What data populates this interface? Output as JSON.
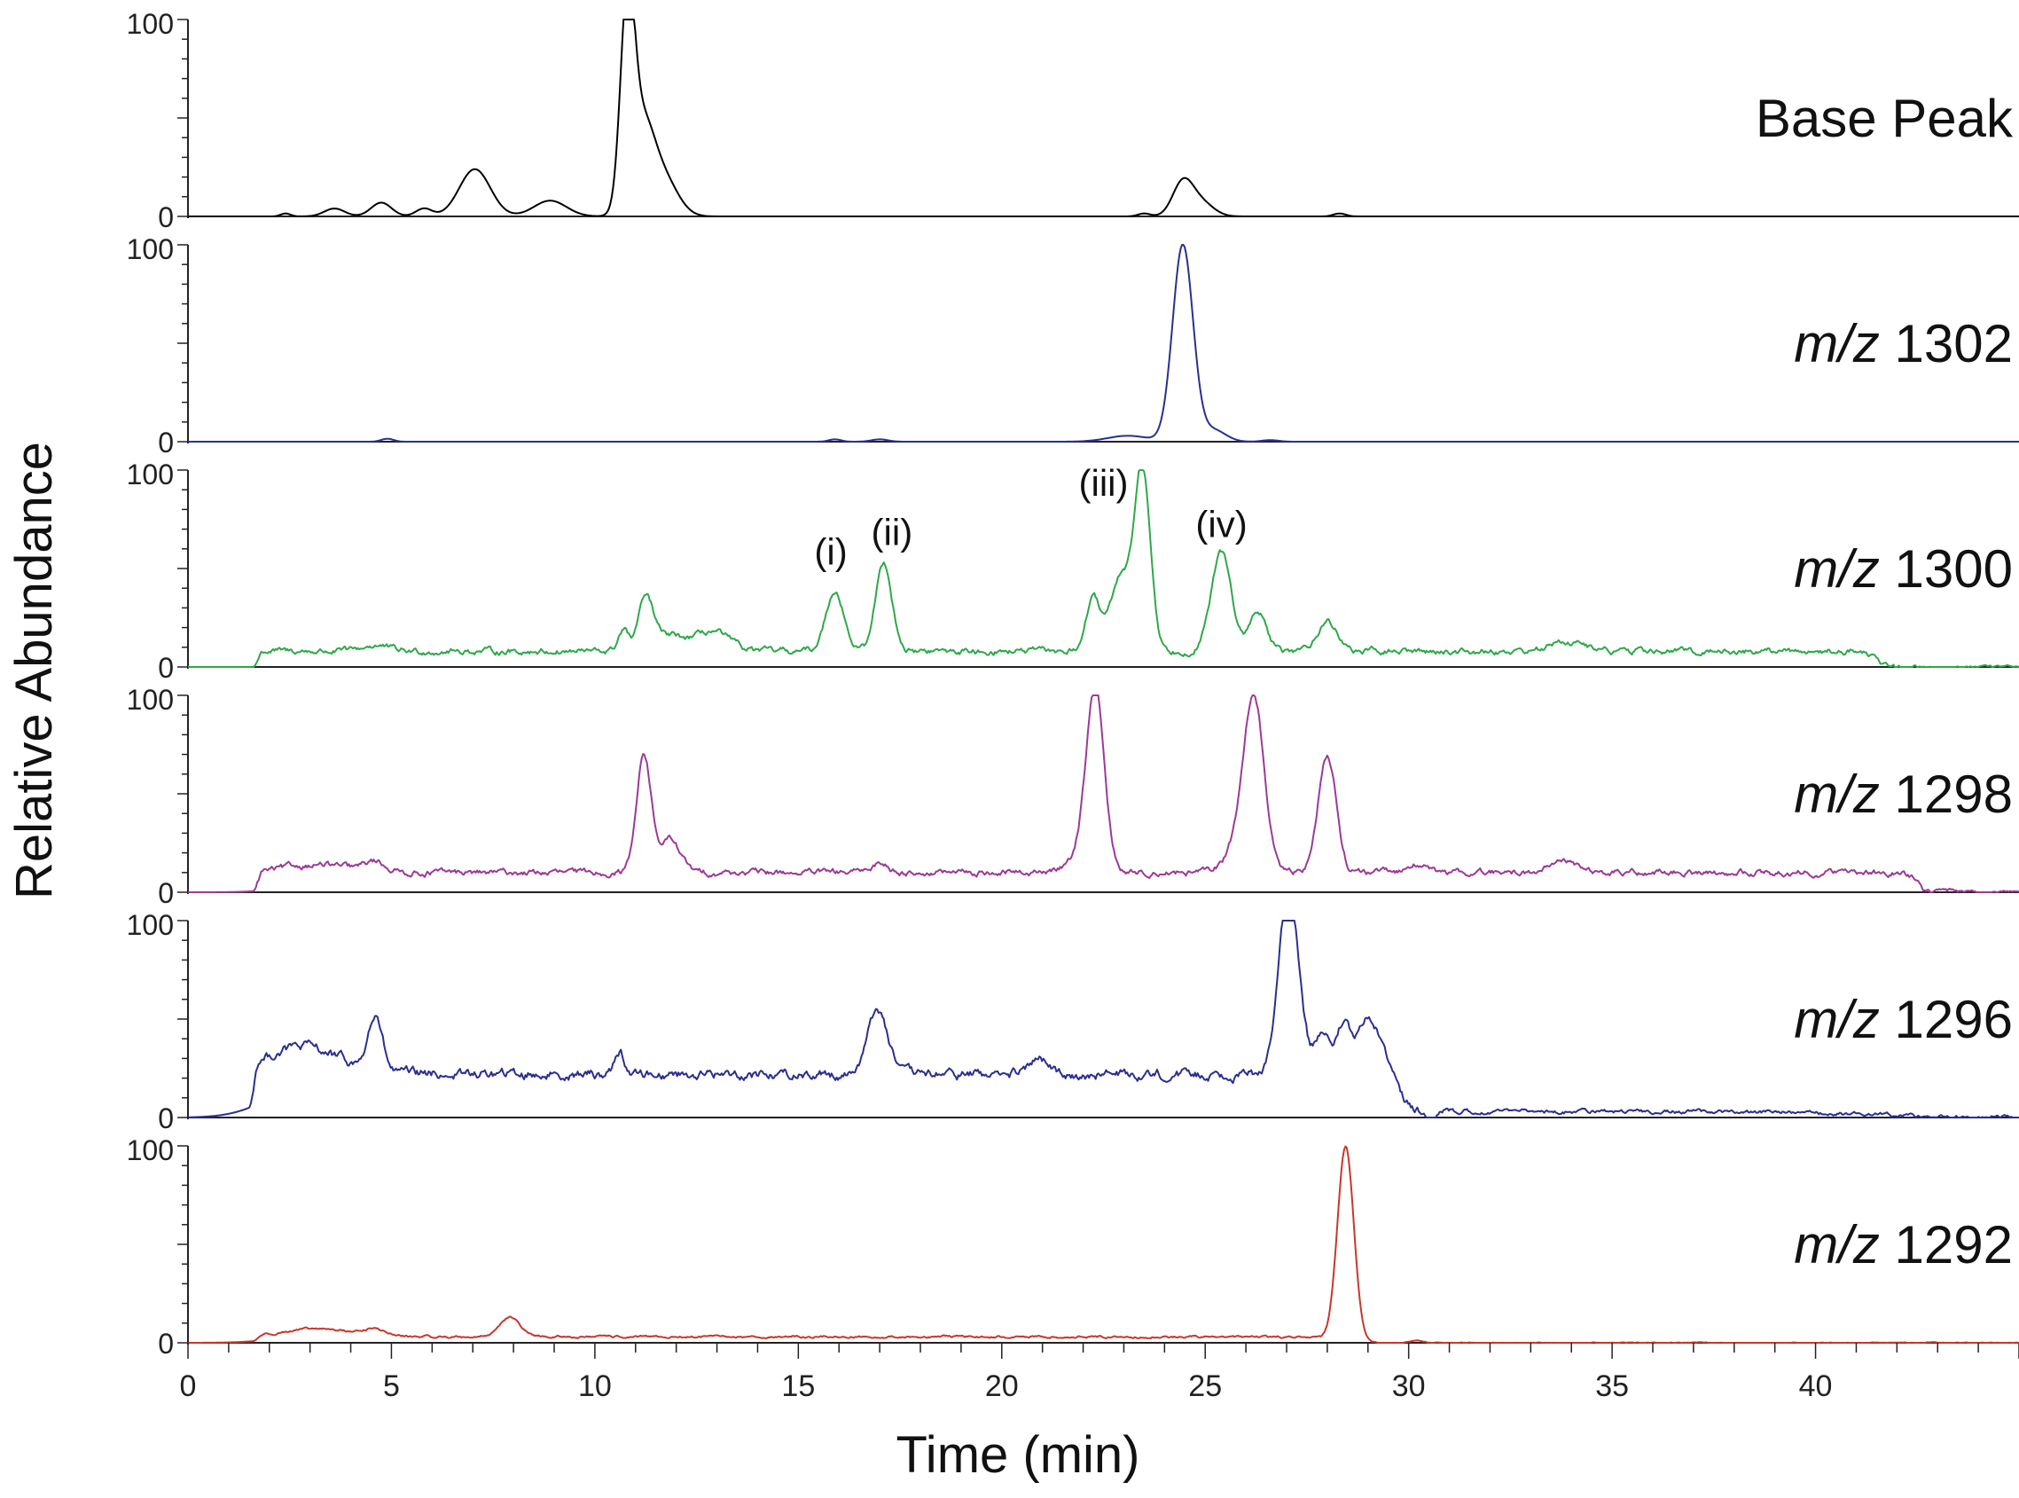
{
  "chart_data": {
    "type": "line",
    "xlabel": "Time (min)",
    "ylabel": "Relative Abundance",
    "xlim": [
      0,
      45
    ],
    "x_ticks": [
      "0",
      "5",
      "10",
      "15",
      "20",
      "25",
      "30",
      "35",
      "40"
    ],
    "x_tick_values": [
      0,
      5,
      10,
      15,
      20,
      25,
      30,
      35,
      40
    ],
    "ylim": [
      0,
      100
    ],
    "y_ticks": [
      "0",
      "100"
    ],
    "series": [
      {
        "name": "Base Peak",
        "name_italic": "",
        "name_rest": "Base Peak",
        "color": "#000000",
        "baseline": 0,
        "peaks": [
          {
            "t": 2.4,
            "h": 1.5,
            "w": 0.12
          },
          {
            "t": 3.6,
            "h": 4,
            "w": 0.25
          },
          {
            "t": 4.75,
            "h": 7,
            "w": 0.25
          },
          {
            "t": 5.8,
            "h": 4,
            "w": 0.2
          },
          {
            "t": 7.05,
            "h": 24,
            "w": 0.38
          },
          {
            "t": 8.9,
            "h": 8,
            "w": 0.4
          },
          {
            "t": 10.8,
            "h": 100,
            "w": 0.17
          },
          {
            "t": 11.15,
            "h": 45,
            "w": 0.3
          },
          {
            "t": 11.7,
            "h": 18,
            "w": 0.35
          },
          {
            "t": 23.5,
            "h": 1.5,
            "w": 0.15
          },
          {
            "t": 24.45,
            "h": 17,
            "w": 0.25
          },
          {
            "t": 24.9,
            "h": 7,
            "w": 0.3
          },
          {
            "t": 28.3,
            "h": 1.5,
            "w": 0.15
          }
        ]
      },
      {
        "name": "m/z 1302",
        "name_italic": "m/z",
        "name_rest": " 1302",
        "color": "#2a2f8f",
        "baseline": 0,
        "peaks": [
          {
            "t": 4.9,
            "h": 1.5,
            "w": 0.15
          },
          {
            "t": 15.9,
            "h": 1.2,
            "w": 0.15
          },
          {
            "t": 17.0,
            "h": 1.2,
            "w": 0.2
          },
          {
            "t": 23.1,
            "h": 3,
            "w": 0.5
          },
          {
            "t": 24.45,
            "h": 100,
            "w": 0.25
          },
          {
            "t": 25.2,
            "h": 6,
            "w": 0.3
          },
          {
            "t": 26.6,
            "h": 0.8,
            "w": 0.2
          }
        ]
      },
      {
        "name": "m/z 1300",
        "name_italic": "m/z",
        "name_rest": " 1300",
        "color": "#2ea84a",
        "baseline": 8,
        "baseline_start": 1.7,
        "baseline_end": 41.5,
        "noise": 2.2,
        "peaks": [
          {
            "t": 4.6,
            "h": 3,
            "w": 0.3
          },
          {
            "t": 10.7,
            "h": 11,
            "w": 0.12
          },
          {
            "t": 11.25,
            "h": 25,
            "w": 0.18
          },
          {
            "t": 11.8,
            "h": 8,
            "w": 0.4
          },
          {
            "t": 12.9,
            "h": 10,
            "w": 0.4
          },
          {
            "t": 15.9,
            "h": 31,
            "w": 0.22
          },
          {
            "t": 17.1,
            "h": 45,
            "w": 0.2
          },
          {
            "t": 22.25,
            "h": 27,
            "w": 0.18
          },
          {
            "t": 22.9,
            "h": 38,
            "w": 0.22
          },
          {
            "t": 23.45,
            "h": 94,
            "w": 0.2
          },
          {
            "t": 25.4,
            "h": 50,
            "w": 0.25
          },
          {
            "t": 26.3,
            "h": 20,
            "w": 0.2
          },
          {
            "t": 28.0,
            "h": 15,
            "w": 0.25
          },
          {
            "t": 33.9,
            "h": 5,
            "w": 0.4
          }
        ],
        "annotations": [
          {
            "text": "(i)",
            "t": 15.8,
            "h": 52
          },
          {
            "text": "(ii)",
            "t": 17.3,
            "h": 62
          },
          {
            "text": "(iii)",
            "t": 22.5,
            "h": 87
          },
          {
            "text": "(iv)",
            "t": 25.4,
            "h": 66
          }
        ]
      },
      {
        "name": "m/z 1298",
        "name_italic": "m/z",
        "name_rest": " 1298",
        "color": "#9b3a96",
        "baseline": 10,
        "baseline_start": 1.7,
        "baseline_end": 42.5,
        "noise": 2.2,
        "peaks": [
          {
            "t": 3.2,
            "h": 4,
            "w": 0.8
          },
          {
            "t": 4.6,
            "h": 5,
            "w": 0.25
          },
          {
            "t": 11.2,
            "h": 60,
            "w": 0.18
          },
          {
            "t": 11.85,
            "h": 17,
            "w": 0.25
          },
          {
            "t": 17.0,
            "h": 5,
            "w": 0.2
          },
          {
            "t": 21.9,
            "h": 8,
            "w": 0.3
          },
          {
            "t": 22.3,
            "h": 92,
            "w": 0.22
          },
          {
            "t": 26.2,
            "h": 86,
            "w": 0.25
          },
          {
            "t": 25.8,
            "h": 12,
            "w": 0.3
          },
          {
            "t": 28.0,
            "h": 60,
            "w": 0.22
          },
          {
            "t": 30.2,
            "h": 5,
            "w": 0.2
          },
          {
            "t": 33.8,
            "h": 6,
            "w": 0.35
          }
        ]
      },
      {
        "name": "m/z 1296",
        "name_italic": "m/z",
        "name_rest": " 1296",
        "color": "#2a2f8f",
        "baseline": 22,
        "baseline_start": 1.6,
        "baseline_end": 29.8,
        "tail": 3,
        "noise": 3.5,
        "peaks": [
          {
            "t": 2.8,
            "h": 14,
            "w": 0.9
          },
          {
            "t": 4.6,
            "h": 27,
            "w": 0.18
          },
          {
            "t": 10.6,
            "h": 12,
            "w": 0.12
          },
          {
            "t": 16.95,
            "h": 33,
            "w": 0.25
          },
          {
            "t": 20.9,
            "h": 8,
            "w": 0.2
          },
          {
            "t": 27.05,
            "h": 93,
            "w": 0.25
          },
          {
            "t": 27.9,
            "h": 20,
            "w": 0.2
          },
          {
            "t": 28.4,
            "h": 22,
            "w": 0.15
          },
          {
            "t": 29.0,
            "h": 28,
            "w": 0.3
          }
        ]
      },
      {
        "name": "m/z 1292",
        "name_italic": "m/z",
        "name_rest": " 1292",
        "color": "#c8372d",
        "baseline": 3,
        "baseline_start": 1.7,
        "baseline_end": 28.0,
        "noise": 0.8,
        "peaks": [
          {
            "t": 3.2,
            "h": 4,
            "w": 0.9
          },
          {
            "t": 4.6,
            "h": 3,
            "w": 0.25
          },
          {
            "t": 7.9,
            "h": 10,
            "w": 0.25
          },
          {
            "t": 28.45,
            "h": 100,
            "w": 0.2
          },
          {
            "t": 30.2,
            "h": 1,
            "w": 0.15
          }
        ]
      }
    ]
  }
}
